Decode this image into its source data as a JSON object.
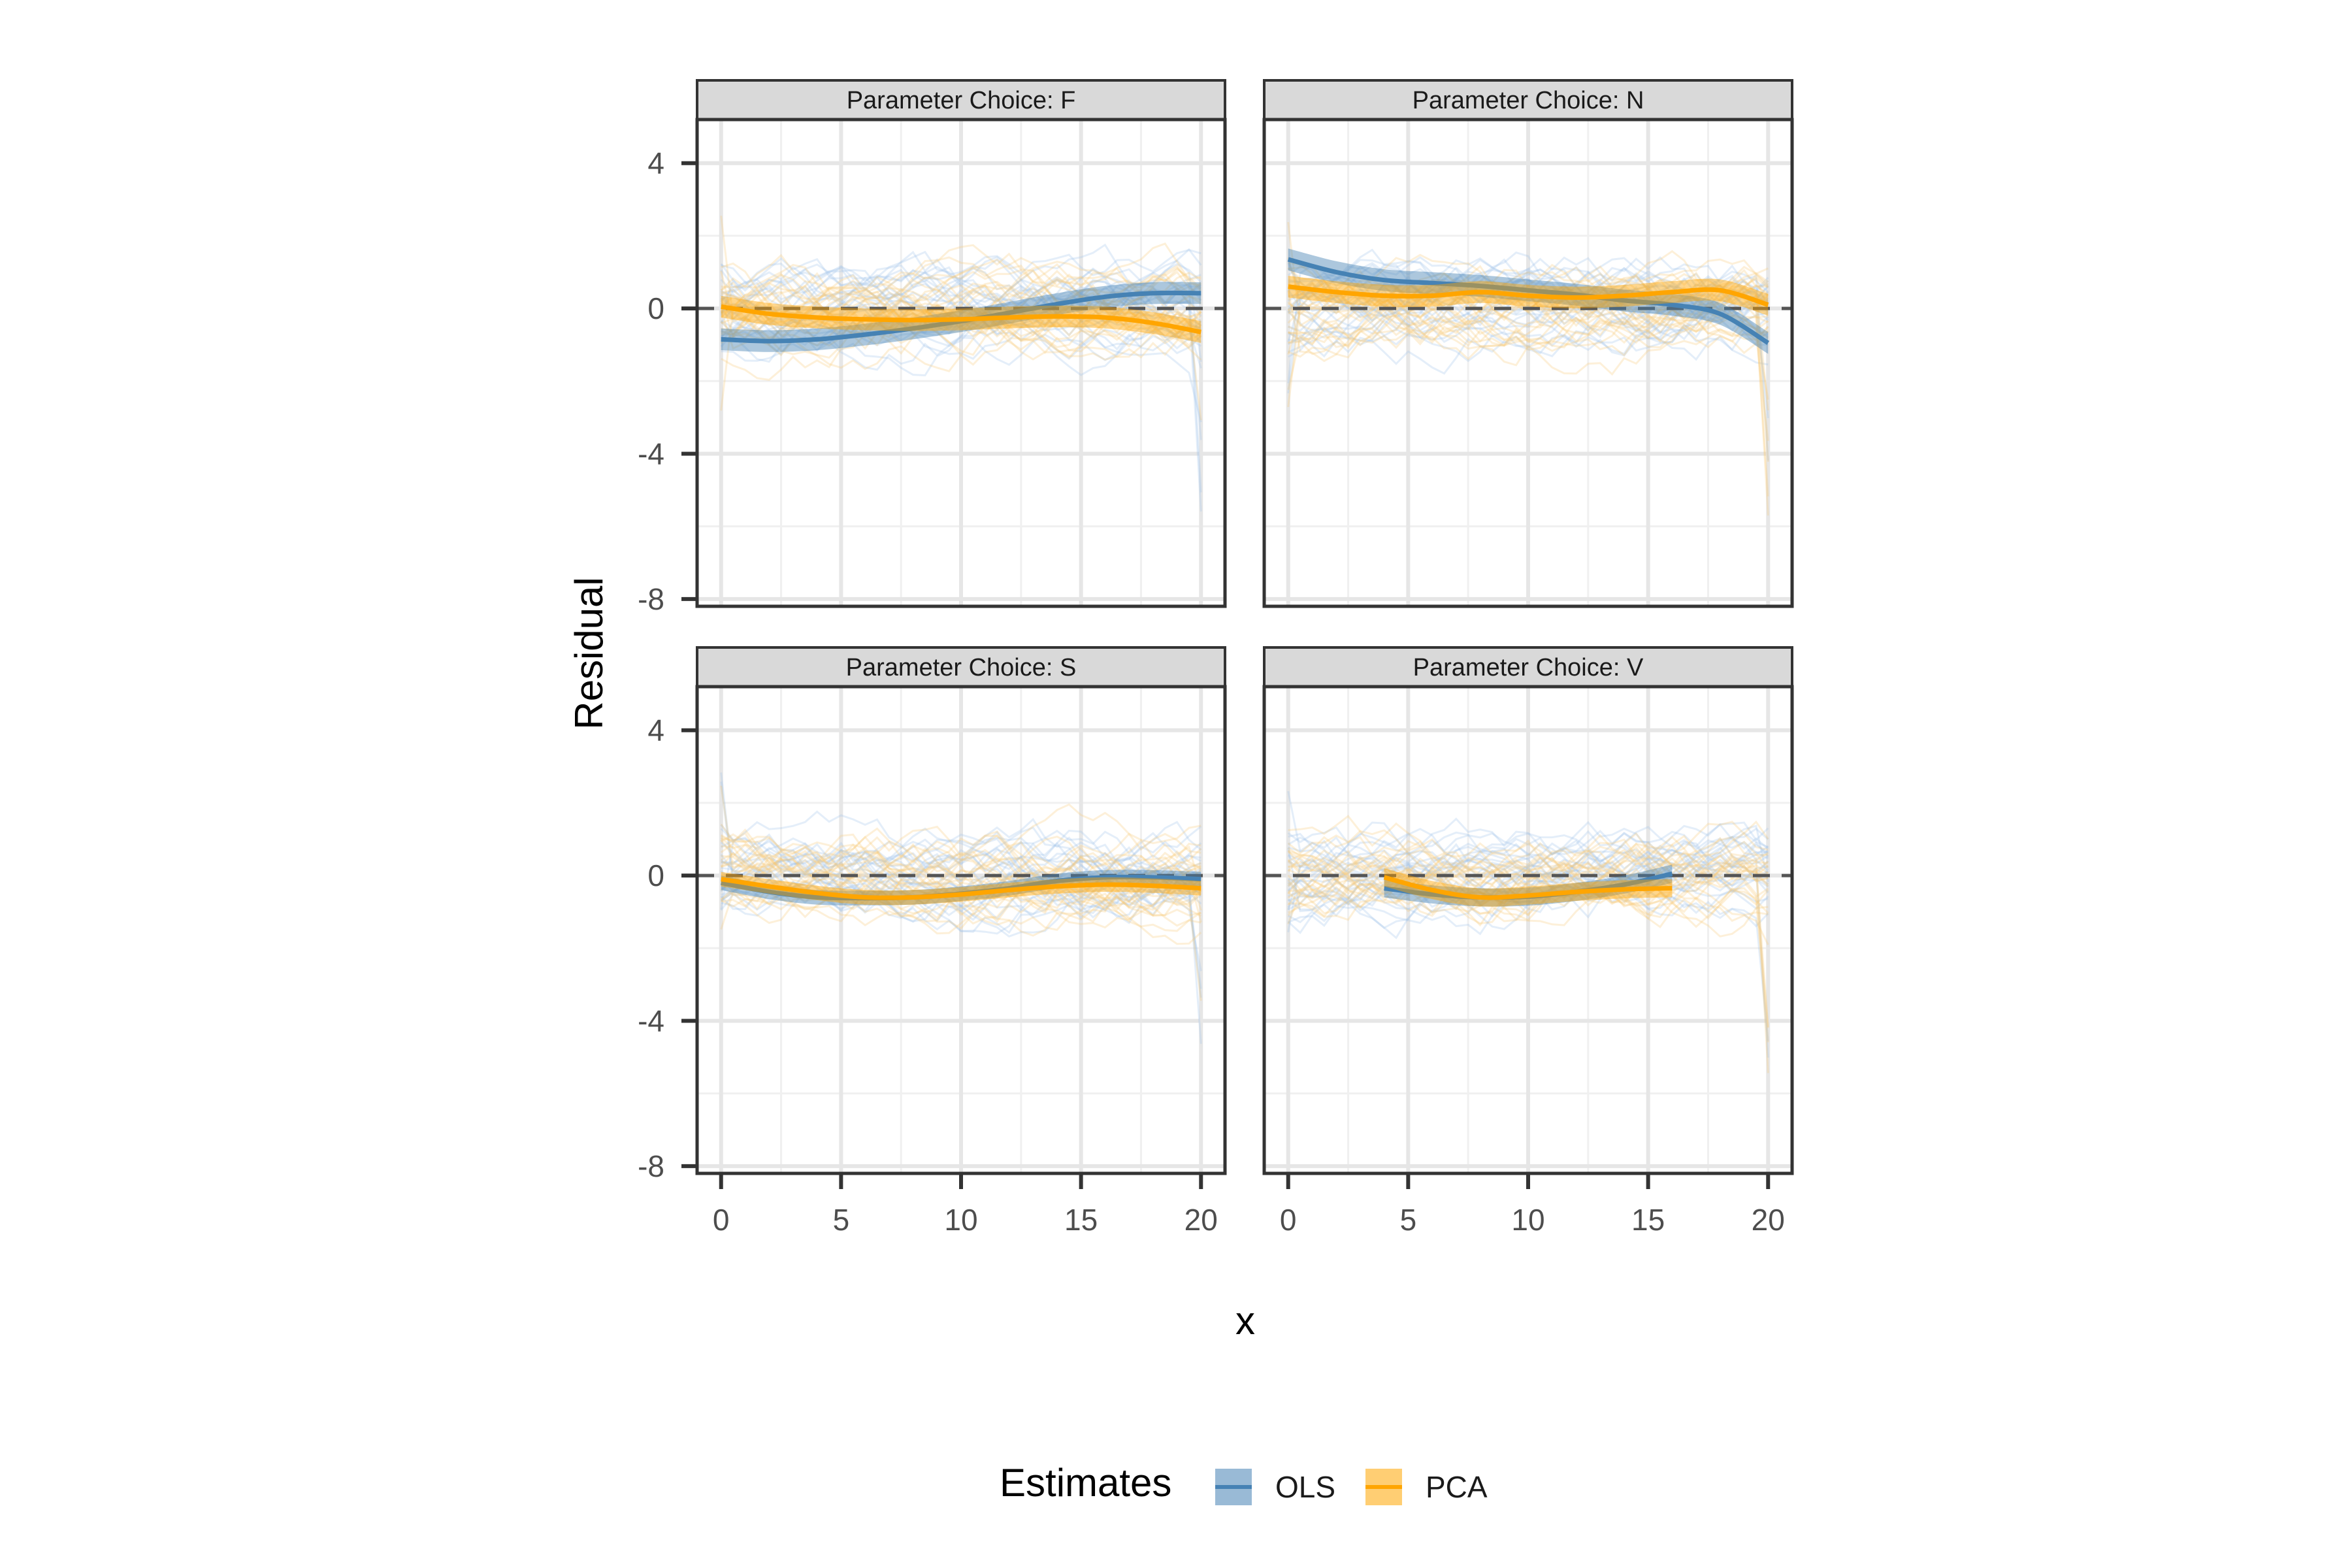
{
  "chart_data": {
    "type": "line",
    "ylabel": "Residual",
    "xlabel": "x",
    "xlim": [
      -1,
      21
    ],
    "ylim": [
      -8.2,
      5.2
    ],
    "xticks": [
      "0",
      "5",
      "10",
      "15",
      "20"
    ],
    "yticks": [
      "4",
      "0",
      "-4",
      "-8"
    ],
    "grid": true,
    "legend": {
      "title": "Estimates",
      "position": "bottom",
      "entries": [
        {
          "name": "OLS",
          "color": "#4682b4"
        },
        {
          "name": "PCA",
          "color": "#ffa500"
        }
      ]
    },
    "reference_line": {
      "y": 0,
      "style": "dashed"
    },
    "panels": [
      {
        "strip": "Parameter Choice: F",
        "series": [
          {
            "name": "OLS",
            "x": [
              0,
              2,
              4,
              6,
              8,
              10,
              12,
              14,
              16,
              18,
              20
            ],
            "y": [
              -0.85,
              -0.9,
              -0.85,
              -0.72,
              -0.55,
              -0.35,
              -0.12,
              0.12,
              0.32,
              0.42,
              0.42
            ],
            "band": 0.3
          },
          {
            "name": "PCA",
            "x": [
              0,
              2,
              4,
              6,
              8,
              10,
              12,
              14,
              16,
              18,
              20
            ],
            "y": [
              0.05,
              -0.15,
              -0.25,
              -0.3,
              -0.32,
              -0.3,
              -0.25,
              -0.22,
              -0.25,
              -0.4,
              -0.65
            ],
            "band": 0.3
          }
        ]
      },
      {
        "strip": "Parameter Choice: N",
        "series": [
          {
            "name": "OLS",
            "x": [
              0,
              2,
              4,
              6,
              8,
              10,
              12,
              14,
              16,
              18,
              20
            ],
            "y": [
              1.35,
              1.0,
              0.78,
              0.7,
              0.62,
              0.5,
              0.38,
              0.22,
              0.1,
              -0.15,
              -0.95
            ],
            "band": 0.3
          },
          {
            "name": "PCA",
            "x": [
              0,
              2,
              4,
              6,
              8,
              10,
              12,
              14,
              16,
              18,
              20
            ],
            "y": [
              0.6,
              0.45,
              0.35,
              0.35,
              0.45,
              0.35,
              0.3,
              0.35,
              0.45,
              0.5,
              0.1
            ],
            "band": 0.3
          }
        ]
      },
      {
        "strip": "Parameter Choice: S",
        "series": [
          {
            "name": "OLS",
            "x": [
              0,
              2,
              4,
              6,
              8,
              10,
              12,
              14,
              16,
              18,
              20
            ],
            "y": [
              -0.2,
              -0.45,
              -0.6,
              -0.62,
              -0.6,
              -0.5,
              -0.35,
              -0.15,
              -0.05,
              -0.05,
              -0.1
            ],
            "band": 0.2
          },
          {
            "name": "PCA",
            "x": [
              0,
              2,
              4,
              6,
              8,
              10,
              12,
              14,
              16,
              18,
              20
            ],
            "y": [
              -0.1,
              -0.3,
              -0.48,
              -0.6,
              -0.6,
              -0.52,
              -0.4,
              -0.3,
              -0.25,
              -0.28,
              -0.35
            ],
            "band": 0.2
          }
        ]
      },
      {
        "strip": "Parameter Choice: V",
        "series": [
          {
            "name": "OLS",
            "x": [
              4,
              6,
              8,
              10,
              12,
              14,
              16
            ],
            "y": [
              -0.35,
              -0.52,
              -0.6,
              -0.58,
              -0.45,
              -0.25,
              0.05
            ],
            "band": 0.25
          },
          {
            "name": "PCA",
            "x": [
              4,
              6,
              8,
              10,
              12,
              14,
              16
            ],
            "y": [
              -0.05,
              -0.4,
              -0.6,
              -0.55,
              -0.45,
              -0.38,
              -0.35
            ],
            "band": 0.25
          }
        ]
      }
    ]
  }
}
